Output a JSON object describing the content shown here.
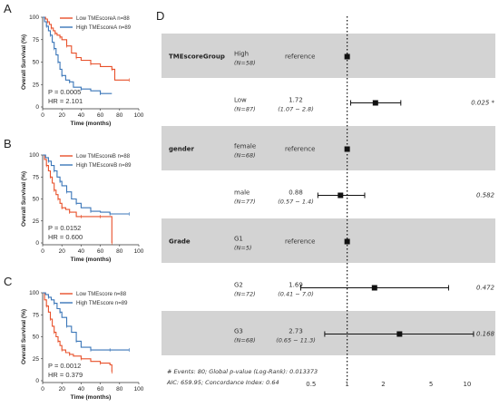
{
  "chart_data": [
    {
      "type": "line",
      "panel": "A",
      "ylabel": "Overall Survival (%)",
      "xlabel": "Time (months)",
      "xticks": [
        0,
        20,
        40,
        60,
        80,
        100
      ],
      "yticks": [
        0,
        25,
        50,
        75,
        100
      ],
      "xlim": [
        0,
        100
      ],
      "ylim": [
        0,
        100
      ],
      "series": [
        {
          "name": "Low TMEscoreA n=88",
          "color": "#e8502a",
          "x": [
            0,
            3,
            5,
            7,
            9,
            11,
            13,
            15,
            18,
            20,
            25,
            30,
            35,
            40,
            50,
            60,
            72,
            75,
            90
          ],
          "y": [
            100,
            98,
            95,
            92,
            88,
            85,
            82,
            80,
            78,
            75,
            68,
            60,
            55,
            52,
            48,
            45,
            42,
            30,
            30
          ]
        },
        {
          "name": "High TMEscoreA n=89",
          "color": "#3a76b8",
          "x": [
            0,
            2,
            4,
            6,
            8,
            10,
            12,
            14,
            16,
            18,
            20,
            24,
            28,
            32,
            40,
            50,
            60,
            72
          ],
          "y": [
            100,
            95,
            90,
            85,
            80,
            72,
            65,
            58,
            50,
            42,
            35,
            30,
            28,
            22,
            20,
            18,
            15,
            15
          ]
        }
      ],
      "stats": {
        "p": "P = 0.0005",
        "hr": "HR = 2.101"
      }
    },
    {
      "type": "line",
      "panel": "B",
      "ylabel": "Overall Survival (%)",
      "xlabel": "Time (months)",
      "xticks": [
        0,
        20,
        40,
        60,
        80,
        100
      ],
      "yticks": [
        0,
        25,
        50,
        75,
        100
      ],
      "xlim": [
        0,
        100
      ],
      "ylim": [
        0,
        100
      ],
      "series": [
        {
          "name": "Low TMEscoreB n=88",
          "color": "#e8502a",
          "x": [
            0,
            2,
            4,
            6,
            8,
            10,
            12,
            14,
            16,
            18,
            20,
            24,
            28,
            35,
            40,
            50,
            60,
            70,
            72
          ],
          "y": [
            100,
            95,
            88,
            82,
            75,
            68,
            60,
            55,
            50,
            45,
            40,
            38,
            35,
            30,
            30,
            30,
            30,
            30,
            0
          ]
        },
        {
          "name": "High TMEscoreB n=89",
          "color": "#3a76b8",
          "x": [
            0,
            3,
            6,
            9,
            12,
            15,
            18,
            20,
            25,
            30,
            35,
            40,
            50,
            60,
            70,
            80,
            90
          ],
          "y": [
            100,
            97,
            93,
            88,
            82,
            75,
            70,
            65,
            58,
            50,
            45,
            40,
            36,
            35,
            33,
            33,
            33
          ]
        }
      ],
      "stats": {
        "p": "P = 0.0152",
        "hr": "HR = 0.600"
      }
    },
    {
      "type": "line",
      "panel": "C",
      "ylabel": "Overall Survival (%)",
      "xlabel": "Time (months)",
      "xticks": [
        0,
        20,
        40,
        60,
        80,
        100
      ],
      "yticks": [
        0,
        25,
        50,
        75,
        100
      ],
      "xlim": [
        0,
        100
      ],
      "ylim": [
        0,
        100
      ],
      "series": [
        {
          "name": "Low TMEscore n=88",
          "color": "#e8502a",
          "x": [
            0,
            2,
            4,
            6,
            8,
            10,
            12,
            14,
            16,
            18,
            20,
            24,
            28,
            32,
            40,
            50,
            60,
            70,
            72
          ],
          "y": [
            100,
            92,
            85,
            78,
            70,
            62,
            55,
            50,
            45,
            40,
            35,
            32,
            30,
            28,
            25,
            22,
            20,
            18,
            10
          ]
        },
        {
          "name": "High TMEscore n=89",
          "color": "#3a76b8",
          "x": [
            0,
            3,
            6,
            9,
            12,
            15,
            18,
            20,
            25,
            30,
            35,
            40,
            50,
            60,
            70,
            80,
            90
          ],
          "y": [
            100,
            98,
            95,
            92,
            88,
            82,
            78,
            72,
            62,
            55,
            45,
            38,
            35,
            35,
            35,
            35,
            35
          ]
        }
      ],
      "stats": {
        "p": "P = 0.0012",
        "hr": "HR = 0.379"
      }
    },
    {
      "type": "forest",
      "panel": "D",
      "xscale": "log",
      "xticks": [
        0.5,
        1,
        2,
        5,
        10
      ],
      "xlim": [
        0.4,
        13
      ],
      "reference": 1,
      "rows": [
        {
          "var": "TMEscoreGroup",
          "level": "High",
          "n": "(N=58)",
          "est": "reference",
          "ci": "",
          "p": "",
          "hr": 1,
          "lo": null,
          "hi": null,
          "shade": true
        },
        {
          "var": "",
          "level": "Low",
          "n": "(N=87)",
          "est": "1.72",
          "ci": "(1.07 − 2.8)",
          "p": "0.025 *",
          "hr": 1.72,
          "lo": 1.07,
          "hi": 2.8,
          "shade": false
        },
        {
          "var": "gender",
          "level": "female",
          "n": "(N=68)",
          "est": "reference",
          "ci": "",
          "p": "",
          "hr": 1,
          "lo": null,
          "hi": null,
          "shade": true
        },
        {
          "var": "",
          "level": "male",
          "n": "(N=77)",
          "est": "0.88",
          "ci": "(0.57 − 1.4)",
          "p": "0.582",
          "hr": 0.88,
          "lo": 0.57,
          "hi": 1.4,
          "shade": false
        },
        {
          "var": "Grade",
          "level": "G1",
          "n": "(N=5)",
          "est": "reference",
          "ci": "",
          "p": "",
          "hr": 1,
          "lo": null,
          "hi": null,
          "shade": true
        },
        {
          "var": "",
          "level": "G2",
          "n": "(N=72)",
          "est": "1.69",
          "ci": "(0.41 − 7.0)",
          "p": "0.472",
          "hr": 1.69,
          "lo": 0.41,
          "hi": 7.0,
          "shade": false
        },
        {
          "var": "",
          "level": "G3",
          "n": "(N=68)",
          "est": "2.73",
          "ci": "(0.65 − 11.3)",
          "p": "0.168",
          "hr": 2.73,
          "lo": 0.65,
          "hi": 11.3,
          "shade": true
        }
      ],
      "footer": [
        "# Events: 80; Global p-value (Log-Rank): 0.013373",
        "AIC: 659.95; Concordance Index: 0.64"
      ]
    }
  ]
}
